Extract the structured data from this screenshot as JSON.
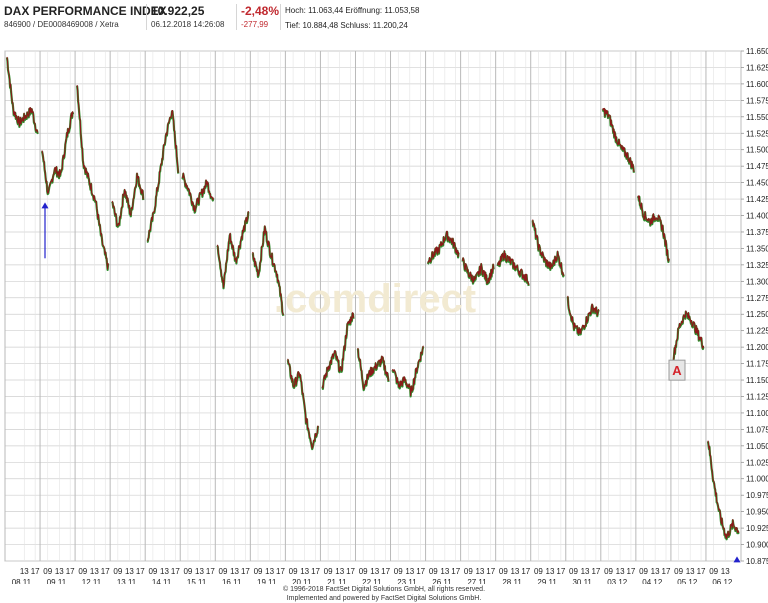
{
  "header": {
    "name": "DAX PERFORMANCE INDEX",
    "id_line": "846900 / DE0008469008 / Xetra",
    "price": "10.922,25",
    "datetime": "06.12.2018 14:26:08",
    "change_pct": "-2,48%",
    "change_abs": "-277,99",
    "high_label": "Hoch:",
    "high_value": "11.063,44",
    "open_label": "Eröffnung:",
    "open_value": "11.053,58",
    "low_label": "Tief:",
    "low_value": "10.884,48",
    "close_label": "Schluss:",
    "close_value": "11.200,24"
  },
  "watermark": ".comdirect",
  "event_marker": "A",
  "footer": {
    "line1": "© 1996-2018 FactSet Digital Solutions GmbH, all rights reserved.",
    "line2": "Implemented and powered by FactSet Digital Solutions GmbH."
  },
  "colors": {
    "up": "#2f8f2f",
    "down": "#8b1a1a",
    "arrow": "#2222cc",
    "grid": "#cfcfcf",
    "marker": "#d4232b"
  },
  "chart_data": {
    "type": "line",
    "title": "DAX PERFORMANCE INDEX",
    "ylim": [
      10875,
      11650
    ],
    "y_ticks": [
      "11.650",
      "11.625",
      "11.600",
      "11.575",
      "11.550",
      "11.525",
      "11.500",
      "11.475",
      "11.450",
      "11.425",
      "11.400",
      "11.375",
      "11.350",
      "11.325",
      "11.300",
      "11.275",
      "11.250",
      "11.225",
      "11.200",
      "11.175",
      "11.150",
      "11.125",
      "11.100",
      "11.075",
      "11.050",
      "11.025",
      "11.000",
      "10.975",
      "10.950",
      "10.925",
      "10.900",
      "10.875"
    ],
    "y_tick_values": [
      11650,
      11625,
      11600,
      11575,
      11550,
      11525,
      11500,
      11475,
      11450,
      11425,
      11400,
      11375,
      11350,
      11325,
      11300,
      11275,
      11250,
      11225,
      11200,
      11175,
      11150,
      11125,
      11100,
      11075,
      11050,
      11025,
      11000,
      10975,
      10950,
      10925,
      10900,
      10875
    ],
    "hour_labels": [
      "09",
      "13",
      "17"
    ],
    "days": [
      {
        "date": "08.11.",
        "hours": [
          "13",
          "17"
        ]
      },
      {
        "date": "09.11.",
        "hours": [
          "09",
          "13",
          "17"
        ]
      },
      {
        "date": "12.11.",
        "hours": [
          "09",
          "13",
          "17"
        ]
      },
      {
        "date": "13.11.",
        "hours": [
          "09",
          "13",
          "17"
        ]
      },
      {
        "date": "14.11.",
        "hours": [
          "09",
          "13",
          "17"
        ]
      },
      {
        "date": "15.11.",
        "hours": [
          "09",
          "13",
          "17"
        ]
      },
      {
        "date": "16.11.",
        "hours": [
          "09",
          "13",
          "17"
        ]
      },
      {
        "date": "19.11.",
        "hours": [
          "09",
          "13",
          "17"
        ]
      },
      {
        "date": "20.11.",
        "hours": [
          "09",
          "13",
          "17"
        ]
      },
      {
        "date": "21.11.",
        "hours": [
          "09",
          "13",
          "17"
        ]
      },
      {
        "date": "22.11.",
        "hours": [
          "09",
          "13",
          "17"
        ]
      },
      {
        "date": "23.11.",
        "hours": [
          "09",
          "13",
          "17"
        ]
      },
      {
        "date": "26.11.",
        "hours": [
          "09",
          "13",
          "17"
        ]
      },
      {
        "date": "27.11.",
        "hours": [
          "09",
          "13",
          "17"
        ]
      },
      {
        "date": "28.11.",
        "hours": [
          "09",
          "13",
          "17"
        ]
      },
      {
        "date": "29.11.",
        "hours": [
          "09",
          "13",
          "17"
        ]
      },
      {
        "date": "30.11.",
        "hours": [
          "09",
          "13",
          "17"
        ]
      },
      {
        "date": "03.12.",
        "hours": [
          "09",
          "13",
          "17"
        ]
      },
      {
        "date": "04.12.",
        "hours": [
          "09",
          "13",
          "17"
        ]
      },
      {
        "date": "05.12.",
        "hours": [
          "09",
          "13",
          "17"
        ]
      },
      {
        "date": "06.12.",
        "hours": [
          "09",
          "13"
        ]
      }
    ],
    "segments": [
      {
        "day": "08.11.",
        "points": [
          11640,
          11560,
          11540,
          11550,
          11560,
          11520
        ]
      },
      {
        "day": "09.11.",
        "points": [
          11500,
          11430,
          11470,
          11460,
          11520,
          11560
        ]
      },
      {
        "day": "12.11.",
        "points": [
          11600,
          11480,
          11450,
          11420,
          11360,
          11320
        ]
      },
      {
        "day": "13.11.",
        "points": [
          11420,
          11380,
          11440,
          11400,
          11460,
          11430
        ]
      },
      {
        "day": "14.11.",
        "points": [
          11360,
          11400,
          11460,
          11520,
          11560,
          11470
        ]
      },
      {
        "day": "15.11.",
        "points": [
          11460,
          11440,
          11410,
          11430,
          11450,
          11420
        ]
      },
      {
        "day": "16.11.",
        "points": [
          11360,
          11290,
          11370,
          11330,
          11370,
          11400
        ]
      },
      {
        "day": "19.11.",
        "points": [
          11340,
          11310,
          11380,
          11340,
          11310,
          11250
        ]
      },
      {
        "day": "20.11.",
        "points": [
          11180,
          11140,
          11160,
          11090,
          11050,
          11080
        ]
      },
      {
        "day": "21.11.",
        "points": [
          11140,
          11170,
          11190,
          11160,
          11230,
          11250
        ]
      },
      {
        "day": "22.11.",
        "points": [
          11200,
          11140,
          11160,
          11170,
          11180,
          11150
        ]
      },
      {
        "day": "23.11.",
        "points": [
          11170,
          11140,
          11150,
          11130,
          11170,
          11200
        ]
      },
      {
        "day": "26.11.",
        "points": [
          11330,
          11340,
          11350,
          11370,
          11360,
          11340
        ]
      },
      {
        "day": "27.11.",
        "points": [
          11330,
          11310,
          11300,
          11320,
          11300,
          11320
        ]
      },
      {
        "day": "28.11.",
        "points": [
          11320,
          11340,
          11330,
          11320,
          11310,
          11300
        ]
      },
      {
        "day": "29.11.",
        "points": [
          11390,
          11350,
          11330,
          11320,
          11340,
          11310
        ]
      },
      {
        "day": "30.11.",
        "points": [
          11270,
          11230,
          11220,
          11240,
          11260,
          11250
        ]
      },
      {
        "day": "03.12.",
        "points": [
          11560,
          11550,
          11520,
          11500,
          11490,
          11470
        ]
      },
      {
        "day": "04.12.",
        "points": [
          11430,
          11400,
          11390,
          11400,
          11380,
          11330
        ]
      },
      {
        "day": "05.12.",
        "points": [
          11180,
          11230,
          11250,
          11240,
          11220,
          11200
        ]
      },
      {
        "day": "06.12.",
        "points": [
          11060,
          10990,
          10940,
          10910,
          10930,
          10920
        ]
      }
    ]
  }
}
